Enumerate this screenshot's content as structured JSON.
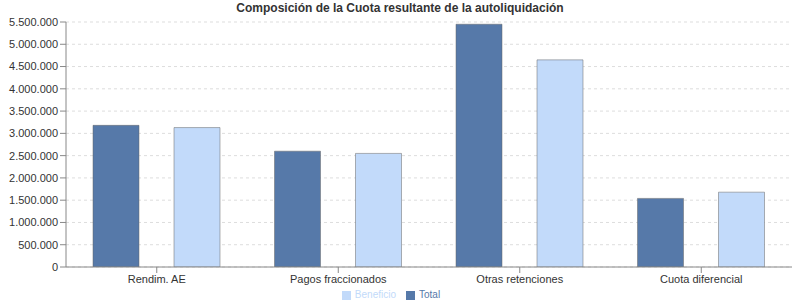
{
  "chart_data": {
    "type": "bar",
    "title": "Composición de la Cuota resultante de la autoliquidación",
    "categories": [
      "Rendim. AE",
      "Pagos fraccionados",
      "Otras retenciones",
      "Cuota diferencial"
    ],
    "series": [
      {
        "name": "Total",
        "color": "#5679a9",
        "values": [
          3180000,
          2600000,
          5450000,
          1540000
        ]
      },
      {
        "name": "Beneficio",
        "color": "#c2dafa",
        "values": [
          3130000,
          2550000,
          4650000,
          1680000
        ]
      }
    ],
    "ylim": [
      0,
      5500000
    ],
    "yticks": [
      0,
      {
        "value": 500000,
        "label": "500.000"
      },
      {
        "value": 1000000,
        "label": "1.000.000"
      },
      {
        "value": 1500000,
        "label": "1.500.000"
      },
      {
        "value": 2000000,
        "label": "2.000.000"
      },
      {
        "value": 2500000,
        "label": "2.500.000"
      },
      {
        "value": 3000000,
        "label": "3.000.000"
      },
      {
        "value": 3500000,
        "label": "3.500.000"
      },
      {
        "value": 4000000,
        "label": "4.000.000"
      },
      {
        "value": 4500000,
        "label": "4.500.000"
      },
      {
        "value": 5000000,
        "label": "5.000.000"
      },
      {
        "value": 5500000,
        "label": "5.500.000"
      }
    ],
    "grid": true,
    "legend": "bottom"
  }
}
